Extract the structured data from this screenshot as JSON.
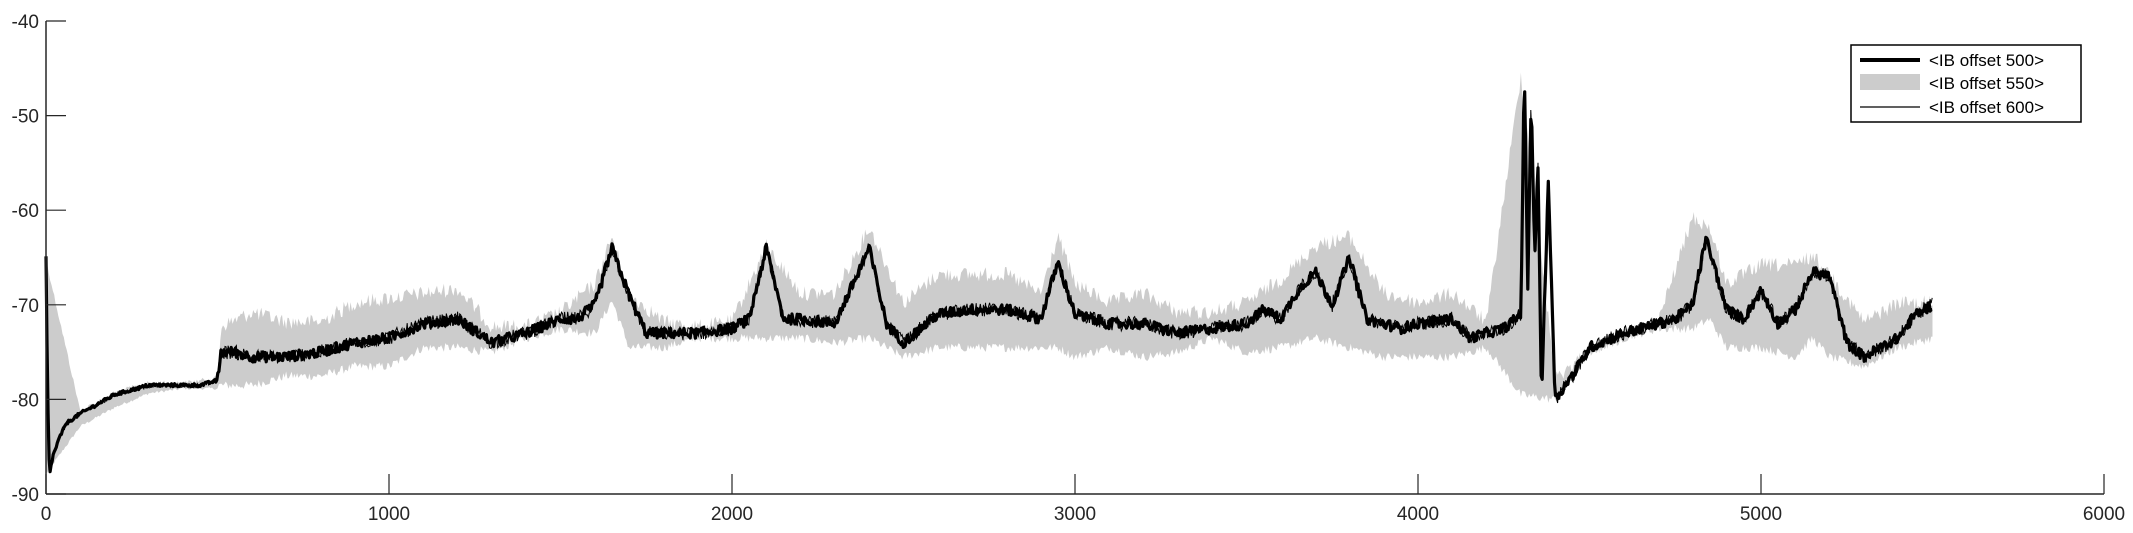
{
  "chart_data": {
    "type": "area",
    "title": "",
    "xlabel": "",
    "ylabel": "",
    "xlim": [
      0,
      6000
    ],
    "ylim": [
      -90,
      -40
    ],
    "xticks": [
      0,
      1000,
      2000,
      3000,
      4000,
      5000,
      6000
    ],
    "yticks": [
      -90,
      -80,
      -70,
      -60,
      -50,
      -40
    ],
    "xtick_labels": [
      "0",
      "1000",
      "2000",
      "3000",
      "4000",
      "5000",
      "6000"
    ],
    "ytick_labels": [
      "-90",
      "-80",
      "-70",
      "-60",
      "-50",
      "-40"
    ],
    "grid": false,
    "legend_position": "top-right",
    "colors": {
      "series_500": "#000000",
      "series_550": "#cccccc",
      "series_600": "#000000",
      "axis": "#262626"
    },
    "series": [
      {
        "name": "<IB offset 500>",
        "style": "thick-line",
        "x": [
          0,
          5,
          10,
          20,
          40,
          60,
          80,
          100,
          150,
          200,
          250,
          300,
          350,
          400,
          450,
          500,
          510,
          550,
          600,
          700,
          800,
          900,
          1000,
          1100,
          1200,
          1300,
          1400,
          1500,
          1550,
          1600,
          1650,
          1700,
          1750,
          1800,
          1900,
          2000,
          2050,
          2100,
          2150,
          2200,
          2300,
          2400,
          2450,
          2500,
          2600,
          2700,
          2800,
          2900,
          2950,
          3000,
          3100,
          3200,
          3300,
          3400,
          3500,
          3550,
          3600,
          3650,
          3700,
          3750,
          3800,
          3850,
          3900,
          3950,
          4000,
          4100,
          4150,
          4200,
          4250,
          4300,
          4310,
          4320,
          4330,
          4340,
          4350,
          4360,
          4380,
          4400,
          4420,
          4450,
          4500,
          4600,
          4700,
          4750,
          4800,
          4840,
          4900,
          4950,
          5000,
          5050,
          5100,
          5150,
          5200,
          5250,
          5300,
          5400,
          5450,
          5500
        ],
        "y": [
          -65,
          -80,
          -88,
          -86,
          -84,
          -82.5,
          -82,
          -81.5,
          -80.5,
          -79.5,
          -79,
          -78.5,
          -78.5,
          -78.5,
          -78.5,
          -78,
          -75,
          -75,
          -75.5,
          -75.5,
          -75,
          -74,
          -73.5,
          -72,
          -71.5,
          -74,
          -73,
          -71.5,
          -71.5,
          -70,
          -64,
          -69,
          -73,
          -73,
          -73,
          -72.5,
          -71.5,
          -64,
          -71.5,
          -71.5,
          -72,
          -64,
          -72,
          -74,
          -71,
          -70.5,
          -70.5,
          -71.5,
          -65.5,
          -71,
          -72,
          -72,
          -73,
          -72.5,
          -72,
          -70.5,
          -71.5,
          -68.5,
          -66.5,
          -70,
          -65,
          -71.5,
          -72,
          -72.5,
          -72,
          -71.5,
          -73.5,
          -73,
          -72.5,
          -71,
          -45,
          -68,
          -48,
          -65,
          -55,
          -80,
          -57,
          -80,
          -79,
          -77.5,
          -74.5,
          -73,
          -72,
          -71.5,
          -70,
          -63,
          -70.5,
          -71.5,
          -68.5,
          -72,
          -70.5,
          -66.5,
          -67,
          -74,
          -75.5,
          -73.5,
          -71,
          -70
        ]
      },
      {
        "name": "<IB offset 550>",
        "style": "gray-band",
        "x": [
          0,
          100,
          200,
          300,
          400,
          500,
          510,
          600,
          700,
          800,
          900,
          1000,
          1100,
          1200,
          1300,
          1400,
          1500,
          1600,
          1650,
          1700,
          1800,
          1900,
          2000,
          2100,
          2200,
          2300,
          2400,
          2500,
          2600,
          2700,
          2800,
          2900,
          2950,
          3000,
          3100,
          3200,
          3300,
          3400,
          3500,
          3600,
          3700,
          3800,
          3900,
          4000,
          4100,
          4200,
          4300,
          4400,
          4500,
          4600,
          4700,
          4800,
          4850,
          4900,
          5000,
          5100,
          5150,
          5200,
          5300,
          5400,
          5500
        ],
        "upper": [
          -65,
          -81,
          -79,
          -78,
          -78,
          -77.5,
          -71.5,
          -70,
          -71,
          -71,
          -69,
          -68.5,
          -68,
          -67.5,
          -71.5,
          -71.5,
          -70,
          -67,
          -62,
          -68,
          -71,
          -71.5,
          -71,
          -63,
          -68,
          -68,
          -61,
          -69,
          -66,
          -66,
          -66,
          -68,
          -62,
          -67,
          -69,
          -68,
          -70,
          -70,
          -69,
          -66.5,
          -63,
          -62,
          -68,
          -69,
          -68,
          -71,
          -45,
          -77,
          -74,
          -72.5,
          -71,
          -60,
          -61,
          -67,
          -65,
          -65,
          -64,
          -66,
          -71,
          -69,
          -69
        ],
        "lower": [
          -88,
          -83,
          -81,
          -79.5,
          -79,
          -79,
          -79,
          -79,
          -78,
          -78,
          -77,
          -77,
          -75,
          -75,
          -75.5,
          -74,
          -73,
          -73.5,
          -70,
          -75,
          -75,
          -74,
          -74,
          -74,
          -74,
          -74.5,
          -74,
          -76,
          -75,
          -75,
          -75,
          -75,
          -75,
          -76,
          -75,
          -76,
          -75.5,
          -74,
          -75.5,
          -75,
          -74,
          -75,
          -76,
          -76,
          -76,
          -75,
          -80,
          -80.5,
          -75.5,
          -74,
          -73,
          -73,
          -72,
          -75,
          -75,
          -76,
          -74,
          -76,
          -77,
          -75,
          -74
        ]
      },
      {
        "name": "<IB offset 600>",
        "style": "thin-line"
      }
    ]
  }
}
